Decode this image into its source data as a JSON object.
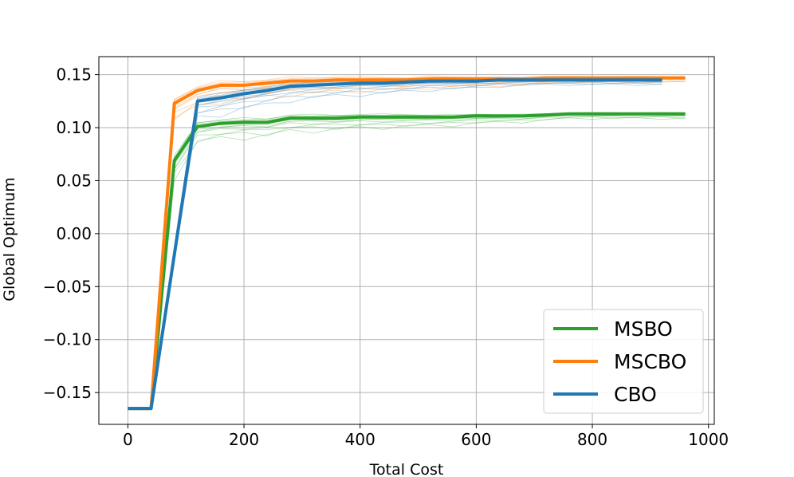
{
  "chart_data": {
    "type": "line",
    "xlabel": "Total Cost",
    "ylabel": "Global Optimum",
    "xlim": [
      -50,
      1010
    ],
    "ylim": [
      -0.18,
      0.167
    ],
    "xticks": [
      0,
      200,
      400,
      600,
      800,
      1000
    ],
    "yticks": [
      0.15,
      0.1,
      0.05,
      0.0,
      -0.05,
      -0.1,
      -0.15
    ],
    "ytick_labels": [
      "0.15",
      "0.10",
      "0.05",
      "0.00",
      "−0.05",
      "−0.10",
      "−0.15"
    ],
    "grid": true,
    "legend_position": "lower right",
    "series": [
      {
        "name": "MSBO",
        "color": "#2ca02c",
        "x": [
          0,
          40,
          80,
          120,
          160,
          200,
          240,
          280,
          320,
          360,
          400,
          440,
          480,
          520,
          560,
          600,
          640,
          680,
          720,
          760,
          800,
          840,
          880,
          920,
          960
        ],
        "y": [
          -0.165,
          -0.165,
          0.069,
          0.101,
          0.104,
          0.105,
          0.105,
          0.109,
          0.109,
          0.109,
          0.11,
          0.11,
          0.11,
          0.11,
          0.11,
          0.111,
          0.111,
          0.111,
          0.112,
          0.113,
          0.113,
          0.113,
          0.113,
          0.113,
          0.113
        ]
      },
      {
        "name": "MSCBO",
        "color": "#ff7f0e",
        "x": [
          0,
          40,
          80,
          120,
          160,
          200,
          240,
          280,
          320,
          360,
          400,
          440,
          480,
          520,
          560,
          600,
          640,
          680,
          720,
          760,
          800,
          840,
          880,
          920,
          960
        ],
        "y": [
          -0.165,
          -0.165,
          0.123,
          0.135,
          0.14,
          0.14,
          0.142,
          0.144,
          0.144,
          0.145,
          0.145,
          0.145,
          0.145,
          0.146,
          0.146,
          0.146,
          0.146,
          0.146,
          0.147,
          0.147,
          0.147,
          0.147,
          0.147,
          0.147,
          0.147
        ]
      },
      {
        "name": "CBO",
        "color": "#1f77b4",
        "x": [
          0,
          40,
          120,
          160,
          200,
          240,
          280,
          320,
          360,
          400,
          440,
          480,
          520,
          560,
          600,
          640,
          680,
          720,
          760,
          800,
          840,
          880,
          920
        ],
        "y": [
          -0.165,
          -0.165,
          0.125,
          0.128,
          0.132,
          0.135,
          0.139,
          0.14,
          0.141,
          0.142,
          0.142,
          0.143,
          0.144,
          0.144,
          0.144,
          0.145,
          0.145,
          0.145,
          0.145,
          0.145,
          0.145,
          0.145,
          0.145
        ]
      }
    ]
  }
}
